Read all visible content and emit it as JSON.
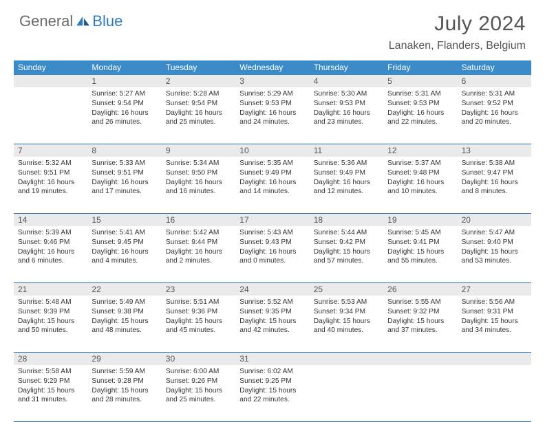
{
  "brand": {
    "part1": "General",
    "part2": "Blue"
  },
  "title": "July 2024",
  "location": "Lanaken, Flanders, Belgium",
  "colors": {
    "header_bg": "#3b8bc9",
    "divider": "#2b6da8",
    "daynum_bg": "#eaeaea",
    "brand_blue": "#2f7bbf",
    "brand_gray": "#6b6b6b"
  },
  "dow": [
    "Sunday",
    "Monday",
    "Tuesday",
    "Wednesday",
    "Thursday",
    "Friday",
    "Saturday"
  ],
  "weeks": [
    [
      {
        "n": "",
        "sr": "",
        "ss": "",
        "dl": ""
      },
      {
        "n": "1",
        "sr": "Sunrise: 5:27 AM",
        "ss": "Sunset: 9:54 PM",
        "dl": "Daylight: 16 hours and 26 minutes."
      },
      {
        "n": "2",
        "sr": "Sunrise: 5:28 AM",
        "ss": "Sunset: 9:54 PM",
        "dl": "Daylight: 16 hours and 25 minutes."
      },
      {
        "n": "3",
        "sr": "Sunrise: 5:29 AM",
        "ss": "Sunset: 9:53 PM",
        "dl": "Daylight: 16 hours and 24 minutes."
      },
      {
        "n": "4",
        "sr": "Sunrise: 5:30 AM",
        "ss": "Sunset: 9:53 PM",
        "dl": "Daylight: 16 hours and 23 minutes."
      },
      {
        "n": "5",
        "sr": "Sunrise: 5:31 AM",
        "ss": "Sunset: 9:53 PM",
        "dl": "Daylight: 16 hours and 22 minutes."
      },
      {
        "n": "6",
        "sr": "Sunrise: 5:31 AM",
        "ss": "Sunset: 9:52 PM",
        "dl": "Daylight: 16 hours and 20 minutes."
      }
    ],
    [
      {
        "n": "7",
        "sr": "Sunrise: 5:32 AM",
        "ss": "Sunset: 9:51 PM",
        "dl": "Daylight: 16 hours and 19 minutes."
      },
      {
        "n": "8",
        "sr": "Sunrise: 5:33 AM",
        "ss": "Sunset: 9:51 PM",
        "dl": "Daylight: 16 hours and 17 minutes."
      },
      {
        "n": "9",
        "sr": "Sunrise: 5:34 AM",
        "ss": "Sunset: 9:50 PM",
        "dl": "Daylight: 16 hours and 16 minutes."
      },
      {
        "n": "10",
        "sr": "Sunrise: 5:35 AM",
        "ss": "Sunset: 9:49 PM",
        "dl": "Daylight: 16 hours and 14 minutes."
      },
      {
        "n": "11",
        "sr": "Sunrise: 5:36 AM",
        "ss": "Sunset: 9:49 PM",
        "dl": "Daylight: 16 hours and 12 minutes."
      },
      {
        "n": "12",
        "sr": "Sunrise: 5:37 AM",
        "ss": "Sunset: 9:48 PM",
        "dl": "Daylight: 16 hours and 10 minutes."
      },
      {
        "n": "13",
        "sr": "Sunrise: 5:38 AM",
        "ss": "Sunset: 9:47 PM",
        "dl": "Daylight: 16 hours and 8 minutes."
      }
    ],
    [
      {
        "n": "14",
        "sr": "Sunrise: 5:39 AM",
        "ss": "Sunset: 9:46 PM",
        "dl": "Daylight: 16 hours and 6 minutes."
      },
      {
        "n": "15",
        "sr": "Sunrise: 5:41 AM",
        "ss": "Sunset: 9:45 PM",
        "dl": "Daylight: 16 hours and 4 minutes."
      },
      {
        "n": "16",
        "sr": "Sunrise: 5:42 AM",
        "ss": "Sunset: 9:44 PM",
        "dl": "Daylight: 16 hours and 2 minutes."
      },
      {
        "n": "17",
        "sr": "Sunrise: 5:43 AM",
        "ss": "Sunset: 9:43 PM",
        "dl": "Daylight: 16 hours and 0 minutes."
      },
      {
        "n": "18",
        "sr": "Sunrise: 5:44 AM",
        "ss": "Sunset: 9:42 PM",
        "dl": "Daylight: 15 hours and 57 minutes."
      },
      {
        "n": "19",
        "sr": "Sunrise: 5:45 AM",
        "ss": "Sunset: 9:41 PM",
        "dl": "Daylight: 15 hours and 55 minutes."
      },
      {
        "n": "20",
        "sr": "Sunrise: 5:47 AM",
        "ss": "Sunset: 9:40 PM",
        "dl": "Daylight: 15 hours and 53 minutes."
      }
    ],
    [
      {
        "n": "21",
        "sr": "Sunrise: 5:48 AM",
        "ss": "Sunset: 9:39 PM",
        "dl": "Daylight: 15 hours and 50 minutes."
      },
      {
        "n": "22",
        "sr": "Sunrise: 5:49 AM",
        "ss": "Sunset: 9:38 PM",
        "dl": "Daylight: 15 hours and 48 minutes."
      },
      {
        "n": "23",
        "sr": "Sunrise: 5:51 AM",
        "ss": "Sunset: 9:36 PM",
        "dl": "Daylight: 15 hours and 45 minutes."
      },
      {
        "n": "24",
        "sr": "Sunrise: 5:52 AM",
        "ss": "Sunset: 9:35 PM",
        "dl": "Daylight: 15 hours and 42 minutes."
      },
      {
        "n": "25",
        "sr": "Sunrise: 5:53 AM",
        "ss": "Sunset: 9:34 PM",
        "dl": "Daylight: 15 hours and 40 minutes."
      },
      {
        "n": "26",
        "sr": "Sunrise: 5:55 AM",
        "ss": "Sunset: 9:32 PM",
        "dl": "Daylight: 15 hours and 37 minutes."
      },
      {
        "n": "27",
        "sr": "Sunrise: 5:56 AM",
        "ss": "Sunset: 9:31 PM",
        "dl": "Daylight: 15 hours and 34 minutes."
      }
    ],
    [
      {
        "n": "28",
        "sr": "Sunrise: 5:58 AM",
        "ss": "Sunset: 9:29 PM",
        "dl": "Daylight: 15 hours and 31 minutes."
      },
      {
        "n": "29",
        "sr": "Sunrise: 5:59 AM",
        "ss": "Sunset: 9:28 PM",
        "dl": "Daylight: 15 hours and 28 minutes."
      },
      {
        "n": "30",
        "sr": "Sunrise: 6:00 AM",
        "ss": "Sunset: 9:26 PM",
        "dl": "Daylight: 15 hours and 25 minutes."
      },
      {
        "n": "31",
        "sr": "Sunrise: 6:02 AM",
        "ss": "Sunset: 9:25 PM",
        "dl": "Daylight: 15 hours and 22 minutes."
      },
      {
        "n": "",
        "sr": "",
        "ss": "",
        "dl": ""
      },
      {
        "n": "",
        "sr": "",
        "ss": "",
        "dl": ""
      },
      {
        "n": "",
        "sr": "",
        "ss": "",
        "dl": ""
      }
    ]
  ]
}
